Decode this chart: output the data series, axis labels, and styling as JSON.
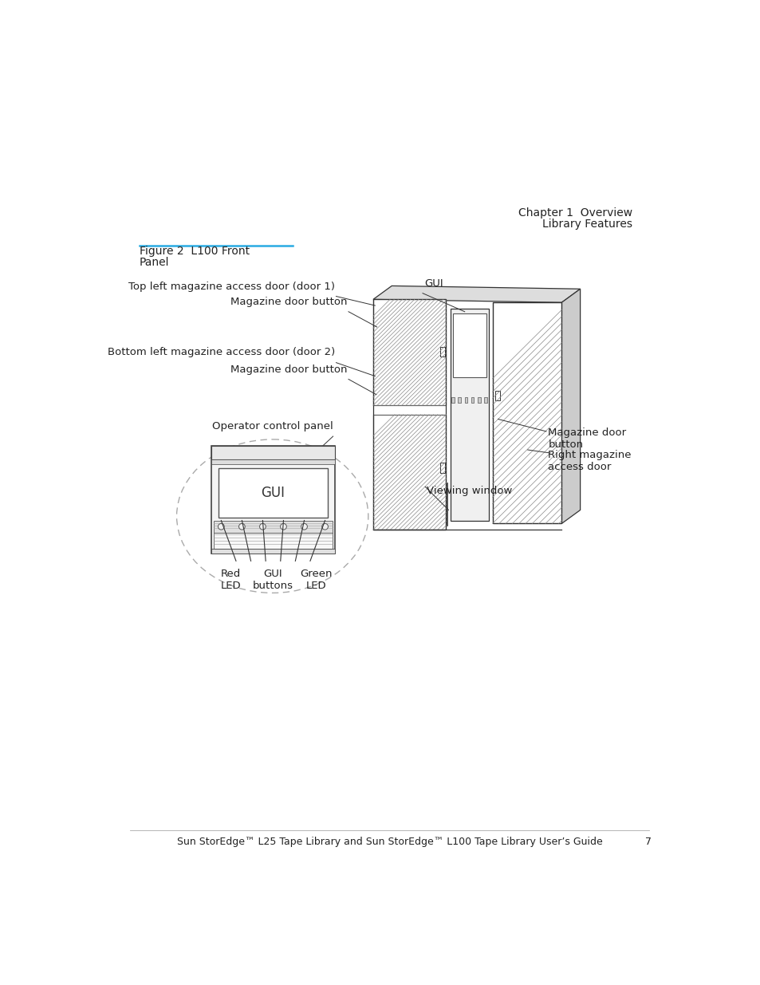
{
  "bg_color": "#ffffff",
  "chapter_text": "Chapter 1  Overview",
  "chapter_sub": "Library Features",
  "figure_title_line1": "Figure 2  L100 Front",
  "figure_title_line2": "Panel",
  "figure_title_line_color": "#29abe2",
  "footer_text": "Sun StorEdge™ L25 Tape Library and Sun StorEdge™ L100 Tape Library User’s Guide",
  "footer_page": "7",
  "font_color": "#222222",
  "line_color": "#333333"
}
